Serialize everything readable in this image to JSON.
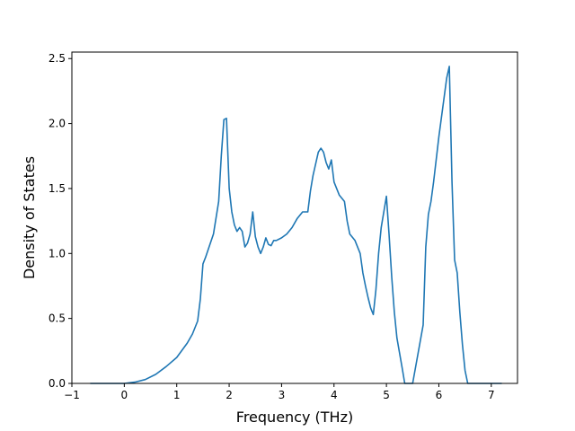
{
  "chart_data": {
    "type": "line",
    "xlabel": "Frequency (THz)",
    "ylabel": "Density of States",
    "xlim": [
      -1.0,
      7.5
    ],
    "ylim": [
      0.0,
      2.55
    ],
    "xticks": [
      -1,
      0,
      1,
      2,
      3,
      4,
      5,
      6,
      7
    ],
    "xtick_labels": [
      "−1",
      "0",
      "1",
      "2",
      "3",
      "4",
      "5",
      "6",
      "7"
    ],
    "yticks": [
      0.0,
      0.5,
      1.0,
      1.5,
      2.0,
      2.5
    ],
    "ytick_labels": [
      "0.0",
      "0.5",
      "1.0",
      "1.5",
      "2.0",
      "2.5"
    ],
    "grid": false,
    "series": [
      {
        "color": "#1f77b4",
        "x": [
          -0.65,
          0.0,
          0.2,
          0.4,
          0.6,
          0.8,
          1.0,
          1.2,
          1.3,
          1.4,
          1.45,
          1.5,
          1.55,
          1.6,
          1.7,
          1.8,
          1.85,
          1.9,
          1.95,
          2.0,
          2.05,
          2.1,
          2.15,
          2.2,
          2.25,
          2.3,
          2.35,
          2.4,
          2.45,
          2.5,
          2.55,
          2.6,
          2.65,
          2.7,
          2.75,
          2.8,
          2.85,
          2.9,
          3.0,
          3.1,
          3.2,
          3.3,
          3.4,
          3.5,
          3.55,
          3.6,
          3.7,
          3.75,
          3.8,
          3.85,
          3.9,
          3.95,
          4.0,
          4.05,
          4.1,
          4.2,
          4.25,
          4.3,
          4.4,
          4.5,
          4.55,
          4.6,
          4.65,
          4.7,
          4.75,
          4.8,
          4.85,
          4.9,
          5.0,
          5.05,
          5.1,
          5.15,
          5.2,
          5.3,
          5.35,
          5.4,
          5.45,
          5.5,
          5.7,
          5.75,
          5.8,
          5.85,
          5.9,
          6.0,
          6.1,
          6.15,
          6.2,
          6.25,
          6.3,
          6.35,
          6.4,
          6.45,
          6.5,
          6.55,
          7.2
        ],
        "y": [
          0.0,
          0.0,
          0.01,
          0.03,
          0.07,
          0.13,
          0.2,
          0.31,
          0.38,
          0.48,
          0.65,
          0.92,
          0.97,
          1.03,
          1.15,
          1.4,
          1.75,
          2.03,
          2.04,
          1.5,
          1.32,
          1.22,
          1.17,
          1.2,
          1.17,
          1.05,
          1.08,
          1.15,
          1.32,
          1.13,
          1.05,
          1.0,
          1.05,
          1.12,
          1.07,
          1.06,
          1.1,
          1.1,
          1.12,
          1.15,
          1.2,
          1.27,
          1.32,
          1.32,
          1.48,
          1.6,
          1.78,
          1.81,
          1.78,
          1.7,
          1.65,
          1.72,
          1.55,
          1.5,
          1.45,
          1.4,
          1.25,
          1.15,
          1.1,
          1.0,
          0.85,
          0.75,
          0.66,
          0.58,
          0.53,
          0.72,
          1.0,
          1.2,
          1.44,
          1.15,
          0.82,
          0.55,
          0.35,
          0.12,
          0.0,
          0.0,
          0.0,
          0.0,
          0.45,
          1.05,
          1.3,
          1.4,
          1.55,
          1.9,
          2.2,
          2.35,
          2.44,
          1.55,
          0.95,
          0.85,
          0.55,
          0.3,
          0.1,
          0.0,
          0.0
        ]
      }
    ]
  }
}
